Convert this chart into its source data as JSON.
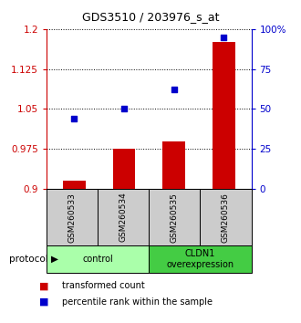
{
  "title": "GDS3510 / 203976_s_at",
  "samples": [
    "GSM260533",
    "GSM260534",
    "GSM260535",
    "GSM260536"
  ],
  "red_values": [
    0.915,
    0.975,
    0.99,
    1.175
  ],
  "blue_values_pct": [
    44,
    50,
    62,
    95
  ],
  "ylim_left": [
    0.9,
    1.2
  ],
  "ylim_right": [
    0,
    100
  ],
  "yticks_left": [
    0.9,
    0.975,
    1.05,
    1.125,
    1.2
  ],
  "yticks_right": [
    0,
    25,
    50,
    75,
    100
  ],
  "ytick_labels_left": [
    "0.9",
    "0.975",
    "1.05",
    "1.125",
    "1.2"
  ],
  "ytick_labels_right": [
    "0",
    "25",
    "50",
    "75",
    "100%"
  ],
  "red_color": "#cc0000",
  "blue_color": "#0000cc",
  "bar_width": 0.45,
  "groups": [
    {
      "label": "control",
      "indices": [
        0,
        1
      ],
      "color": "#aaffaa"
    },
    {
      "label": "CLDN1\noverexpression",
      "indices": [
        2,
        3
      ],
      "color": "#44cc44"
    }
  ],
  "legend_red": "transformed count",
  "legend_blue": "percentile rank within the sample",
  "protocol_label": "protocol",
  "axis_color_left": "#cc0000",
  "axis_color_right": "#0000cc",
  "sample_box_color": "#cccccc",
  "figsize": [
    3.3,
    3.54
  ],
  "dpi": 100
}
